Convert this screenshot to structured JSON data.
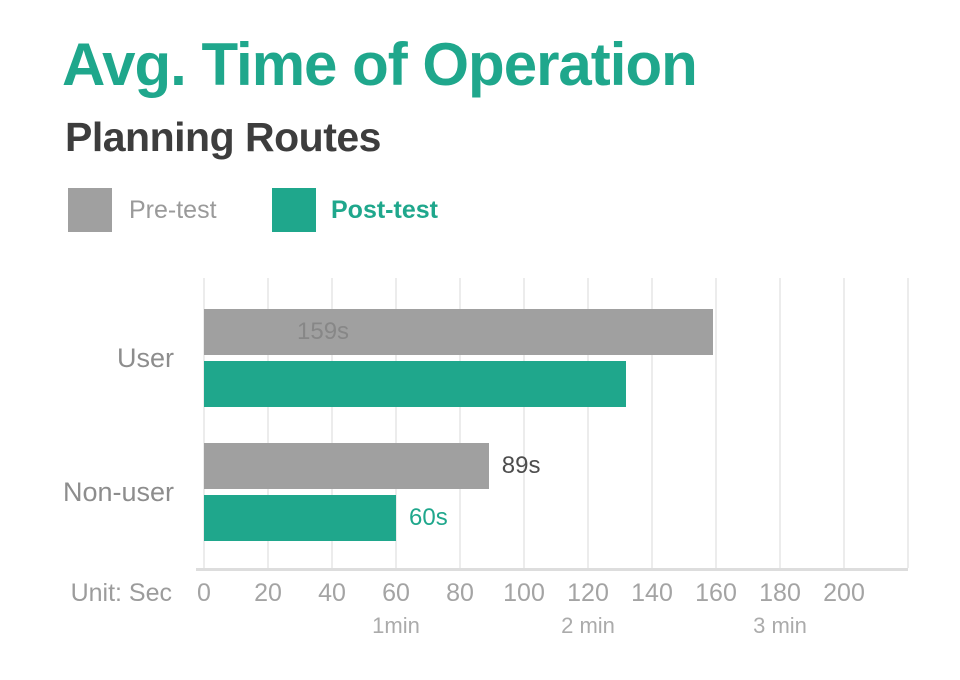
{
  "colors": {
    "accent_teal": "#1FA78C",
    "bar_gray": "#A0A0A0",
    "gridline": "#ECECEC",
    "axis_line": "#DDDDDD",
    "background": "#FFFFFF",
    "title_color": "#1FA78C",
    "subtitle_color": "#3D3D3D"
  },
  "chart_data": {
    "type": "bar",
    "orientation": "horizontal",
    "title": "Avg. Time of Operation",
    "subtitle": "Planning Routes",
    "unit_label": "Unit: Sec",
    "categories": [
      "User",
      "Non-user"
    ],
    "series": [
      {
        "name": "Pre-test",
        "color": "#A0A0A0",
        "legend_text_color": "#9A9A9A",
        "values": [
          159,
          89
        ],
        "data_labels": [
          {
            "text": "159s",
            "position": "inside",
            "color": "#878787"
          },
          {
            "text": "89s",
            "position": "outside",
            "color": "#4D4D4D"
          }
        ]
      },
      {
        "name": "Post-test",
        "color": "#1FA78C",
        "legend_text_color": "#1FA78C",
        "values": [
          132,
          60
        ],
        "data_labels": [
          {
            "text": "",
            "position": "none",
            "color": ""
          },
          {
            "text": "60s",
            "position": "outside",
            "color": "#1FA78C"
          }
        ]
      }
    ],
    "xlim": [
      0,
      220
    ],
    "tick_step": 20,
    "tick_labels": [
      "0",
      "20",
      "40",
      "60",
      "80",
      "100",
      "120",
      "140",
      "160",
      "180",
      "200"
    ],
    "minute_marks": [
      {
        "value": 60,
        "label": "1min"
      },
      {
        "value": 120,
        "label": "2 min"
      },
      {
        "value": 180,
        "label": "3 min"
      }
    ],
    "grid": true,
    "legend_position": "top-left"
  }
}
